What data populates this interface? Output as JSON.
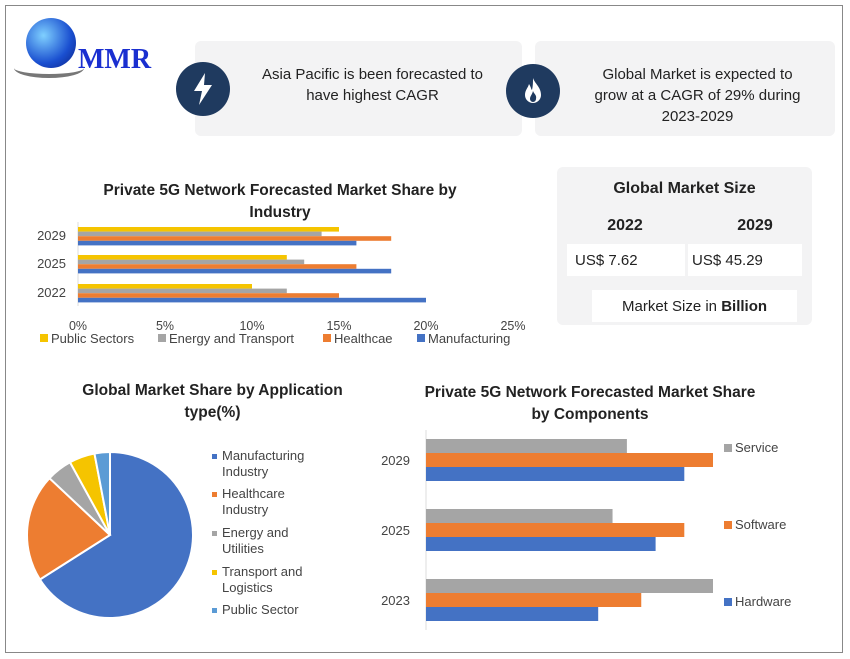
{
  "logo": {
    "text": "MMR"
  },
  "highlights": [
    {
      "icon": "lightning-icon",
      "text": "Asia Pacific is been forecasted to have highest CAGR"
    },
    {
      "icon": "flame-icon",
      "text": "Global Market is expected to grow at a CAGR of 29% during 2023-2029"
    }
  ],
  "market_size": {
    "title": "Global Market Size",
    "years": [
      "2022",
      "2029"
    ],
    "values": [
      "US$ 7.62",
      "US$ 45.29"
    ],
    "note_prefix": "Market Size in ",
    "note_bold": "Billion"
  },
  "colors": {
    "public": "#f5c400",
    "energy": "#a5a5a5",
    "health": "#ed7d31",
    "manufacturing": "#4472c4",
    "pie_public": "#5b9bd5",
    "navy": "#1f3a5f"
  },
  "chart_data": [
    {
      "type": "bar",
      "orientation": "horizontal",
      "title": "Private 5G Network Forecasted Market Share by Industry",
      "categories": [
        "2029",
        "2025",
        "2022"
      ],
      "xlim": [
        0,
        25
      ],
      "xticks": [
        "0%",
        "5%",
        "10%",
        "15%",
        "20%",
        "25%"
      ],
      "legend": "bottom",
      "series": [
        {
          "name": "Public Sectors",
          "values": [
            15,
            12,
            10
          ]
        },
        {
          "name": "Energy and Transport",
          "values": [
            14,
            13,
            12
          ]
        },
        {
          "name": "Healthcae",
          "values": [
            18,
            16,
            15
          ]
        },
        {
          "name": "Manufacturing",
          "values": [
            16,
            18,
            20
          ]
        }
      ]
    },
    {
      "type": "pie",
      "title": "Global Market Share by Application type(%)",
      "legend": "right",
      "labels": [
        "Manufacturing Industry",
        "Healthcare Industry",
        "Energy and Utilities",
        "Transport and Logistics",
        "Public Sector"
      ],
      "values": [
        66,
        21,
        5,
        5,
        3
      ]
    },
    {
      "type": "bar",
      "orientation": "horizontal",
      "title": "Private 5G Network Forecasted Market Share by Components",
      "categories": [
        "2029",
        "2025",
        "2023"
      ],
      "legend": "right",
      "series": [
        {
          "name": "Service",
          "values": [
            70,
            65,
            100
          ]
        },
        {
          "name": "Software",
          "values": [
            100,
            90,
            75
          ]
        },
        {
          "name": "Hardware",
          "values": [
            90,
            80,
            60
          ]
        }
      ]
    }
  ]
}
